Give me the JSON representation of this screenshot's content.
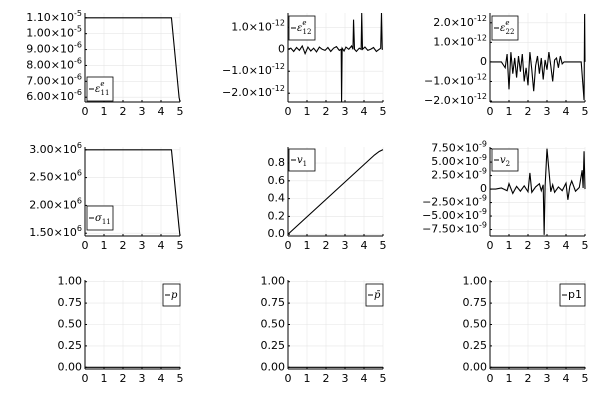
{
  "chart_data": [
    {
      "type": "line",
      "legend": "ε^e_11",
      "legend_style": "math",
      "xlim": [
        0,
        5
      ],
      "ylim": [
        5.7e-06,
        1.13e-05
      ],
      "xticks": [
        {
          "v": 0,
          "label": "0"
        },
        {
          "v": 1,
          "label": "1"
        },
        {
          "v": 2,
          "label": "2"
        },
        {
          "v": 3,
          "label": "3"
        },
        {
          "v": 4,
          "label": "4"
        },
        {
          "v": 5,
          "label": "5"
        }
      ],
      "yticks": [
        {
          "v": 6e-06,
          "label": "6.00×10^-6"
        },
        {
          "v": 7e-06,
          "label": "7.00×10^-6"
        },
        {
          "v": 8e-06,
          "label": "8.00×10^-6"
        },
        {
          "v": 9e-06,
          "label": "9.00×10^-6"
        },
        {
          "v": 1e-05,
          "label": "1.00×10^-5"
        },
        {
          "v": 1.1e-05,
          "label": "1.10×10^-5"
        }
      ],
      "series": [
        {
          "x": [
            0,
            4.55,
            4.95,
            5.0
          ],
          "y": [
            1.1e-05,
            1.1e-05,
            6e-06,
            5.7e-06
          ]
        }
      ]
    },
    {
      "type": "line",
      "legend": "ε^e_12",
      "legend_style": "math",
      "xlim": [
        0,
        5
      ],
      "ylim": [
        -2.4e-12,
        1.65e-12
      ],
      "xticks": [
        {
          "v": 0,
          "label": "0"
        },
        {
          "v": 1,
          "label": "1"
        },
        {
          "v": 2,
          "label": "2"
        },
        {
          "v": 3,
          "label": "3"
        },
        {
          "v": 4,
          "label": "4"
        },
        {
          "v": 5,
          "label": "5"
        }
      ],
      "yticks": [
        {
          "v": 1e-12,
          "label": "1.0×10^-12"
        },
        {
          "v": 0,
          "label": "0"
        },
        {
          "v": -1e-12,
          "label": "−1.0×10^-12"
        },
        {
          "v": -2e-12,
          "label": "−2.0×10^-12"
        }
      ],
      "series": [
        {
          "x": [
            0,
            0.15,
            0.3,
            0.45,
            0.6,
            0.75,
            0.9,
            1.05,
            1.2,
            1.35,
            1.5,
            1.65,
            1.8,
            1.95,
            2.1,
            2.25,
            2.4,
            2.55,
            2.7,
            2.8,
            2.82,
            2.85,
            2.95,
            3.05,
            3.2,
            3.35,
            3.42,
            3.45,
            3.5,
            3.6,
            3.75,
            3.85,
            3.88,
            3.92,
            4.05,
            4.2,
            4.35,
            4.5,
            4.65,
            4.8,
            4.88,
            4.92,
            4.96,
            5.0
          ],
          "y": [
            0,
            5e-14,
            -1e-13,
            8e-14,
            -5e-14,
            1.5e-13,
            -2e-13,
            1e-13,
            -8e-14,
            5e-14,
            -1.2e-13,
            1e-13,
            0.0,
            -5e-14,
            8e-14,
            -1e-13,
            5e-14,
            1.2e-13,
            -5e-14,
            0.0,
            -2.4e-12,
            5e-14,
            -8e-14,
            1e-13,
            0.0,
            1.5e-13,
            0.0,
            1.35e-12,
            0.0,
            -1e-13,
            5e-14,
            0.0,
            1.65e-12,
            0.0,
            1e-13,
            -5e-14,
            0.0,
            8e-14,
            -1e-13,
            0.0,
            5e-14,
            1.65e-12,
            0.0,
            0.0
          ]
        }
      ]
    },
    {
      "type": "line",
      "legend": "ε^e_22",
      "legend_style": "math",
      "xlim": [
        0,
        5
      ],
      "ylim": [
        -2.05e-12,
        2.5e-12
      ],
      "xticks": [
        {
          "v": 0,
          "label": "0"
        },
        {
          "v": 1,
          "label": "1"
        },
        {
          "v": 2,
          "label": "2"
        },
        {
          "v": 3,
          "label": "3"
        },
        {
          "v": 4,
          "label": "4"
        },
        {
          "v": 5,
          "label": "5"
        }
      ],
      "yticks": [
        {
          "v": 2e-12,
          "label": "2.0×10^-12"
        },
        {
          "v": 1e-12,
          "label": "1.0×10^-12"
        },
        {
          "v": 0,
          "label": "0"
        },
        {
          "v": -1e-12,
          "label": "−1.0×10^-12"
        },
        {
          "v": -2e-12,
          "label": "−2.0×10^-12"
        }
      ],
      "series": [
        {
          "x": [
            0,
            0.2,
            0.4,
            0.6,
            0.8,
            0.9,
            1.0,
            1.1,
            1.2,
            1.3,
            1.4,
            1.5,
            1.6,
            1.7,
            1.8,
            1.9,
            2.0,
            2.1,
            2.2,
            2.3,
            2.4,
            2.5,
            2.6,
            2.7,
            2.8,
            2.9,
            3.0,
            3.1,
            3.2,
            3.3,
            3.4,
            3.5,
            3.6,
            3.7,
            3.8,
            3.9,
            4.0,
            4.1,
            4.2,
            4.3,
            4.4,
            4.6,
            4.8,
            4.95,
            4.98,
            5.0
          ],
          "y": [
            0,
            0,
            0,
            0,
            -3e-13,
            4e-13,
            -1.4e-12,
            5e-13,
            -6e-13,
            2e-13,
            -8e-13,
            3e-13,
            -5e-13,
            4e-13,
            -1e-12,
            -3e-13,
            -1.2e-12,
            5e-13,
            -4e-13,
            -1.5e-12,
            -2e-13,
            3e-13,
            -6e-13,
            2e-13,
            -9e-13,
            1e-13,
            -4e-13,
            5e-13,
            -2e-13,
            -1e-12,
            1e-13,
            2e-13,
            -3e-13,
            3e-13,
            -1e-13,
            0,
            0,
            0,
            0,
            0,
            0,
            0,
            0,
            -1.95e-12,
            2.45e-12,
            0
          ]
        }
      ]
    },
    {
      "type": "line",
      "legend": "σ_11",
      "legend_style": "math",
      "xlim": [
        0,
        5
      ],
      "ylim": [
        1450000.0,
        3050000.0
      ],
      "xticks": [
        {
          "v": 0,
          "label": "0"
        },
        {
          "v": 1,
          "label": "1"
        },
        {
          "v": 2,
          "label": "2"
        },
        {
          "v": 3,
          "label": "3"
        },
        {
          "v": 4,
          "label": "4"
        },
        {
          "v": 5,
          "label": "5"
        }
      ],
      "yticks": [
        {
          "v": 1500000.0,
          "label": "1.50×10^6"
        },
        {
          "v": 2000000.0,
          "label": "2.00×10^6"
        },
        {
          "v": 2500000.0,
          "label": "2.50×10^6"
        },
        {
          "v": 3000000.0,
          "label": "3.00×10^6"
        }
      ],
      "series": [
        {
          "x": [
            0,
            4.55,
            4.95,
            5.0
          ],
          "y": [
            3000000.0,
            3000000.0,
            1600000.0,
            1450000.0
          ]
        }
      ]
    },
    {
      "type": "line",
      "legend": "v_1",
      "legend_style": "math",
      "xlim": [
        0,
        5
      ],
      "ylim": [
        -0.02,
        0.98
      ],
      "xticks": [
        {
          "v": 0,
          "label": "0"
        },
        {
          "v": 1,
          "label": "1"
        },
        {
          "v": 2,
          "label": "2"
        },
        {
          "v": 3,
          "label": "3"
        },
        {
          "v": 4,
          "label": "4"
        },
        {
          "v": 5,
          "label": "5"
        }
      ],
      "yticks": [
        {
          "v": 0.0,
          "label": "0.0"
        },
        {
          "v": 0.2,
          "label": "0.2"
        },
        {
          "v": 0.4,
          "label": "0.4"
        },
        {
          "v": 0.6,
          "label": "0.6"
        },
        {
          "v": 0.8,
          "label": "0.8"
        }
      ],
      "series": [
        {
          "x": [
            0,
            4.55,
            4.8,
            5.0
          ],
          "y": [
            0,
            0.89,
            0.93,
            0.95
          ]
        }
      ]
    },
    {
      "type": "line",
      "legend": "v_2",
      "legend_style": "math",
      "xlim": [
        0,
        5
      ],
      "ylim": [
        -8.7e-09,
        7.8e-09
      ],
      "xticks": [
        {
          "v": 0,
          "label": "0"
        },
        {
          "v": 1,
          "label": "1"
        },
        {
          "v": 2,
          "label": "2"
        },
        {
          "v": 3,
          "label": "3"
        },
        {
          "v": 4,
          "label": "4"
        },
        {
          "v": 5,
          "label": "5"
        }
      ],
      "yticks": [
        {
          "v": 7.5e-09,
          "label": "7.50×10^-9"
        },
        {
          "v": 5e-09,
          "label": "5.00×10^-9"
        },
        {
          "v": 2.5e-09,
          "label": "2.50×10^-9"
        },
        {
          "v": 0,
          "label": "0"
        },
        {
          "v": -2.5e-09,
          "label": "−2.50×10^-9"
        },
        {
          "v": -5e-09,
          "label": "−5.00×10^-9"
        },
        {
          "v": -7.5e-09,
          "label": "−7.50×10^-9"
        }
      ],
      "series": [
        {
          "x": [
            0,
            0.3,
            0.6,
            0.9,
            1.0,
            1.2,
            1.4,
            1.6,
            1.8,
            2.0,
            2.1,
            2.2,
            2.4,
            2.6,
            2.7,
            2.8,
            2.85,
            2.9,
            3.0,
            3.2,
            3.3,
            3.4,
            3.6,
            3.8,
            4.0,
            4.1,
            4.2,
            4.3,
            4.5,
            4.7,
            4.85,
            4.9,
            4.95,
            5.0
          ],
          "y": [
            0,
            0,
            2e-10,
            -3e-10,
            1e-09,
            -8e-10,
            5e-10,
            -4e-10,
            6e-10,
            -5e-10,
            3e-09,
            -6e-10,
            4e-10,
            1e-09,
            -3e-10,
            8e-10,
            -8.5e-09,
            5e-10,
            7.5e-09,
            -5e-10,
            8e-10,
            -6e-10,
            4e-10,
            -3e-10,
            1.1e-09,
            -2e-09,
            5e-10,
            1.5e-09,
            -4e-10,
            3e-10,
            3.5e-09,
            2e-10,
            7e-09,
            0
          ]
        }
      ]
    },
    {
      "type": "line",
      "legend": "p",
      "legend_style": "math",
      "xlim": [
        0,
        5
      ],
      "ylim": [
        -0.02,
        1.02
      ],
      "xticks": [
        {
          "v": 0,
          "label": "0"
        },
        {
          "v": 1,
          "label": "1"
        },
        {
          "v": 2,
          "label": "2"
        },
        {
          "v": 3,
          "label": "3"
        },
        {
          "v": 4,
          "label": "4"
        },
        {
          "v": 5,
          "label": "5"
        }
      ],
      "yticks": [
        {
          "v": 0.0,
          "label": "0.00"
        },
        {
          "v": 0.25,
          "label": "0.25"
        },
        {
          "v": 0.5,
          "label": "0.50"
        },
        {
          "v": 0.75,
          "label": "0.75"
        },
        {
          "v": 1.0,
          "label": "1.00"
        }
      ],
      "series": [
        {
          "x": [
            0,
            5
          ],
          "y": [
            0,
            0
          ]
        }
      ]
    },
    {
      "type": "line",
      "legend": "p̄",
      "legend_style": "math",
      "xlim": [
        0,
        5
      ],
      "ylim": [
        -0.02,
        1.02
      ],
      "xticks": [
        {
          "v": 0,
          "label": "0"
        },
        {
          "v": 1,
          "label": "1"
        },
        {
          "v": 2,
          "label": "2"
        },
        {
          "v": 3,
          "label": "3"
        },
        {
          "v": 4,
          "label": "4"
        },
        {
          "v": 5,
          "label": "5"
        }
      ],
      "yticks": [
        {
          "v": 0.0,
          "label": "0.00"
        },
        {
          "v": 0.25,
          "label": "0.25"
        },
        {
          "v": 0.5,
          "label": "0.50"
        },
        {
          "v": 0.75,
          "label": "0.75"
        },
        {
          "v": 1.0,
          "label": "1.00"
        }
      ],
      "series": [
        {
          "x": [
            0,
            5
          ],
          "y": [
            0,
            0
          ]
        }
      ]
    },
    {
      "type": "line",
      "legend": "p1",
      "legend_style": "upright",
      "xlim": [
        0,
        5
      ],
      "ylim": [
        -0.02,
        1.02
      ],
      "xticks": [
        {
          "v": 0,
          "label": "0"
        },
        {
          "v": 1,
          "label": "1"
        },
        {
          "v": 2,
          "label": "2"
        },
        {
          "v": 3,
          "label": "3"
        },
        {
          "v": 4,
          "label": "4"
        },
        {
          "v": 5,
          "label": "5"
        }
      ],
      "yticks": [
        {
          "v": 0.0,
          "label": "0.00"
        },
        {
          "v": 0.25,
          "label": "0.25"
        },
        {
          "v": 0.5,
          "label": "0.50"
        },
        {
          "v": 0.75,
          "label": "0.75"
        },
        {
          "v": 1.0,
          "label": "1.00"
        }
      ],
      "series": [
        {
          "x": [
            0,
            5
          ],
          "y": [
            0,
            0
          ]
        }
      ]
    }
  ]
}
